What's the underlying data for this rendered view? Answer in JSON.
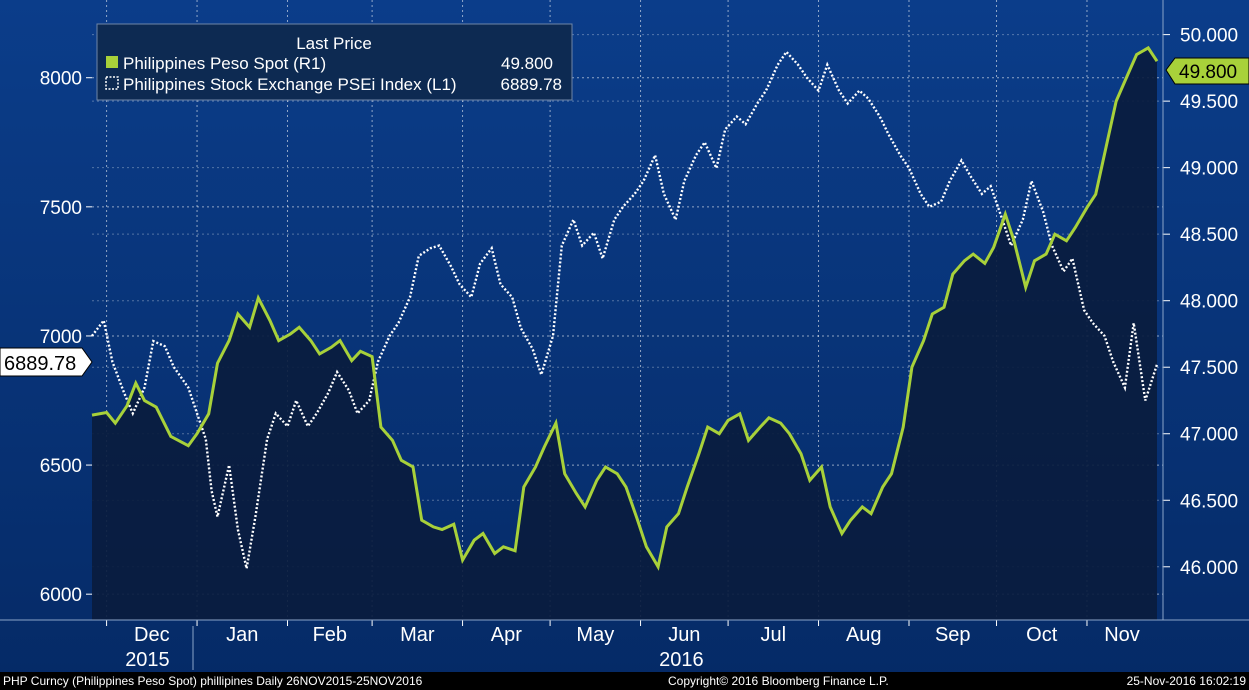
{
  "colors": {
    "background_top": "#0b3d8a",
    "background_bottom": "#052a66",
    "peso_line": "#a8d13a",
    "index_line": "#ffffff",
    "area_fill": "#0a1c3e",
    "grid": "#ffffff"
  },
  "legend": {
    "header": "Last Price",
    "peso_label": "Philippines Peso Spot  (R1)",
    "peso_value": "49.800",
    "index_label": "Philippines Stock Exchange PSEi Index  (L1)",
    "index_value": "6889.78"
  },
  "badges": {
    "left_value": "6889.78",
    "right_value": "49.800"
  },
  "footer": {
    "left": "PHP Curncy (Philippines Peso Spot) phillipines  Daily 26NOV2015-25NOV2016",
    "center": "Copyright© 2016 Bloomberg Finance L.P.",
    "right": "25-Nov-2016 16:02:19"
  },
  "chart_data": {
    "type": "line",
    "x_start_date": "2015-11-26",
    "x_end_date": "2016-11-25",
    "x_months": [
      "Dec",
      "Jan",
      "Feb",
      "Mar",
      "Apr",
      "May",
      "Jun",
      "Jul",
      "Aug",
      "Sep",
      "Oct",
      "Nov"
    ],
    "x_years": [
      "2015",
      "2016"
    ],
    "left_axis": {
      "series": "Philippines Stock Exchange PSEi Index",
      "ticks": [
        "6000",
        "6500",
        "7000",
        "7500",
        "8000"
      ],
      "ylim": [
        5900,
        8270
      ]
    },
    "right_axis": {
      "series": "Philippines Peso Spot",
      "ticks": [
        "46.000",
        "46.500",
        "47.000",
        "47.500",
        "48.000",
        "48.500",
        "49.000",
        "49.500",
        "50.000"
      ],
      "ylim": [
        45.6,
        50.2
      ]
    },
    "grid": true,
    "legend_position": "top-left",
    "series": [
      {
        "name": "Philippines Peso Spot",
        "axis": "right",
        "style": "solid",
        "values": [
          [
            "2015-11-26",
            47.14
          ],
          [
            "2015-12-01",
            47.16
          ],
          [
            "2015-12-04",
            47.08
          ],
          [
            "2015-12-08",
            47.21
          ],
          [
            "2015-12-11",
            47.38
          ],
          [
            "2015-12-14",
            47.25
          ],
          [
            "2015-12-18",
            47.2
          ],
          [
            "2015-12-23",
            46.98
          ],
          [
            "2015-12-29",
            46.91
          ],
          [
            "2016-01-01",
            47.0
          ],
          [
            "2016-01-05",
            47.15
          ],
          [
            "2016-01-08",
            47.53
          ],
          [
            "2016-01-12",
            47.7
          ],
          [
            "2016-01-15",
            47.9
          ],
          [
            "2016-01-19",
            47.8
          ],
          [
            "2016-01-22",
            48.02
          ],
          [
            "2016-01-26",
            47.85
          ],
          [
            "2016-01-29",
            47.7
          ],
          [
            "2016-02-02",
            47.75
          ],
          [
            "2016-02-05",
            47.8
          ],
          [
            "2016-02-09",
            47.7
          ],
          [
            "2016-02-12",
            47.6
          ],
          [
            "2016-02-16",
            47.65
          ],
          [
            "2016-02-19",
            47.7
          ],
          [
            "2016-02-23",
            47.55
          ],
          [
            "2016-02-26",
            47.62
          ],
          [
            "2016-03-01",
            47.58
          ],
          [
            "2016-03-04",
            47.05
          ],
          [
            "2016-03-08",
            46.95
          ],
          [
            "2016-03-11",
            46.8
          ],
          [
            "2016-03-15",
            46.75
          ],
          [
            "2016-03-18",
            46.35
          ],
          [
            "2016-03-22",
            46.3
          ],
          [
            "2016-03-25",
            46.28
          ],
          [
            "2016-03-29",
            46.32
          ],
          [
            "2016-04-01",
            46.05
          ],
          [
            "2016-04-05",
            46.2
          ],
          [
            "2016-04-08",
            46.25
          ],
          [
            "2016-04-12",
            46.1
          ],
          [
            "2016-04-15",
            46.15
          ],
          [
            "2016-04-19",
            46.12
          ],
          [
            "2016-04-22",
            46.6
          ],
          [
            "2016-04-26",
            46.75
          ],
          [
            "2016-04-29",
            46.9
          ],
          [
            "2016-05-03",
            47.08
          ],
          [
            "2016-05-06",
            46.7
          ],
          [
            "2016-05-10",
            46.55
          ],
          [
            "2016-05-13",
            46.45
          ],
          [
            "2016-05-17",
            46.65
          ],
          [
            "2016-05-20",
            46.75
          ],
          [
            "2016-05-24",
            46.7
          ],
          [
            "2016-05-27",
            46.6
          ],
          [
            "2016-05-31",
            46.35
          ],
          [
            "2016-06-03",
            46.15
          ],
          [
            "2016-06-07",
            46.0
          ],
          [
            "2016-06-10",
            46.3
          ],
          [
            "2016-06-14",
            46.4
          ],
          [
            "2016-06-17",
            46.6
          ],
          [
            "2016-06-21",
            46.85
          ],
          [
            "2016-06-24",
            47.05
          ],
          [
            "2016-06-28",
            47.0
          ],
          [
            "2016-07-01",
            47.1
          ],
          [
            "2016-07-05",
            47.15
          ],
          [
            "2016-07-08",
            46.95
          ],
          [
            "2016-07-12",
            47.05
          ],
          [
            "2016-07-15",
            47.12
          ],
          [
            "2016-07-19",
            47.08
          ],
          [
            "2016-07-22",
            47.0
          ],
          [
            "2016-07-26",
            46.85
          ],
          [
            "2016-07-29",
            46.65
          ],
          [
            "2016-08-02",
            46.75
          ],
          [
            "2016-08-05",
            46.45
          ],
          [
            "2016-08-09",
            46.25
          ],
          [
            "2016-08-12",
            46.35
          ],
          [
            "2016-08-16",
            46.45
          ],
          [
            "2016-08-19",
            46.4
          ],
          [
            "2016-08-23",
            46.6
          ],
          [
            "2016-08-26",
            46.7
          ],
          [
            "2016-08-30",
            47.05
          ],
          [
            "2016-09-02",
            47.5
          ],
          [
            "2016-09-06",
            47.7
          ],
          [
            "2016-09-09",
            47.9
          ],
          [
            "2016-09-13",
            47.95
          ],
          [
            "2016-09-16",
            48.2
          ],
          [
            "2016-09-20",
            48.3
          ],
          [
            "2016-09-23",
            48.35
          ],
          [
            "2016-09-27",
            48.28
          ],
          [
            "2016-09-30",
            48.4
          ],
          [
            "2016-10-04",
            48.65
          ],
          [
            "2016-10-07",
            48.45
          ],
          [
            "2016-10-11",
            48.1
          ],
          [
            "2016-10-14",
            48.3
          ],
          [
            "2016-10-18",
            48.35
          ],
          [
            "2016-10-21",
            48.5
          ],
          [
            "2016-10-25",
            48.45
          ],
          [
            "2016-10-28",
            48.55
          ],
          [
            "2016-11-01",
            48.7
          ],
          [
            "2016-11-04",
            48.8
          ],
          [
            "2016-11-08",
            49.2
          ],
          [
            "2016-11-11",
            49.5
          ],
          [
            "2016-11-15",
            49.7
          ],
          [
            "2016-11-18",
            49.85
          ],
          [
            "2016-11-22",
            49.9
          ],
          [
            "2016-11-25",
            49.8
          ]
        ]
      },
      {
        "name": "Philippines Stock Exchange PSEi Index",
        "axis": "left",
        "style": "dotted",
        "values": [
          [
            "2015-11-26",
            7000
          ],
          [
            "2015-11-30",
            7060
          ],
          [
            "2015-12-03",
            6900
          ],
          [
            "2015-12-07",
            6780
          ],
          [
            "2015-12-10",
            6700
          ],
          [
            "2015-12-14",
            6800
          ],
          [
            "2015-12-17",
            6980
          ],
          [
            "2015-12-21",
            6960
          ],
          [
            "2015-12-24",
            6880
          ],
          [
            "2015-12-29",
            6800
          ],
          [
            "2016-01-04",
            6600
          ],
          [
            "2016-01-06",
            6400
          ],
          [
            "2016-01-08",
            6300
          ],
          [
            "2016-01-12",
            6500
          ],
          [
            "2016-01-15",
            6250
          ],
          [
            "2016-01-18",
            6100
          ],
          [
            "2016-01-21",
            6300
          ],
          [
            "2016-01-25",
            6600
          ],
          [
            "2016-01-28",
            6700
          ],
          [
            "2016-02-01",
            6650
          ],
          [
            "2016-02-04",
            6750
          ],
          [
            "2016-02-08",
            6650
          ],
          [
            "2016-02-11",
            6700
          ],
          [
            "2016-02-15",
            6780
          ],
          [
            "2016-02-18",
            6860
          ],
          [
            "2016-02-22",
            6790
          ],
          [
            "2016-02-25",
            6700
          ],
          [
            "2016-02-29",
            6750
          ],
          [
            "2016-03-03",
            6900
          ],
          [
            "2016-03-07",
            7000
          ],
          [
            "2016-03-10",
            7050
          ],
          [
            "2016-03-14",
            7150
          ],
          [
            "2016-03-17",
            7310
          ],
          [
            "2016-03-21",
            7340
          ],
          [
            "2016-03-24",
            7350
          ],
          [
            "2016-03-28",
            7270
          ],
          [
            "2016-03-31",
            7200
          ],
          [
            "2016-04-04",
            7150
          ],
          [
            "2016-04-07",
            7280
          ],
          [
            "2016-04-11",
            7340
          ],
          [
            "2016-04-14",
            7200
          ],
          [
            "2016-04-18",
            7150
          ],
          [
            "2016-04-21",
            7030
          ],
          [
            "2016-04-25",
            6950
          ],
          [
            "2016-04-28",
            6850
          ],
          [
            "2016-05-02",
            7000
          ],
          [
            "2016-05-05",
            7350
          ],
          [
            "2016-05-09",
            7450
          ],
          [
            "2016-05-12",
            7350
          ],
          [
            "2016-05-16",
            7400
          ],
          [
            "2016-05-19",
            7300
          ],
          [
            "2016-05-23",
            7450
          ],
          [
            "2016-05-26",
            7500
          ],
          [
            "2016-05-30",
            7550
          ],
          [
            "2016-06-02",
            7600
          ],
          [
            "2016-06-06",
            7700
          ],
          [
            "2016-06-09",
            7550
          ],
          [
            "2016-06-13",
            7450
          ],
          [
            "2016-06-16",
            7600
          ],
          [
            "2016-06-20",
            7700
          ],
          [
            "2016-06-23",
            7750
          ],
          [
            "2016-06-27",
            7650
          ],
          [
            "2016-06-30",
            7800
          ],
          [
            "2016-07-04",
            7850
          ],
          [
            "2016-07-07",
            7820
          ],
          [
            "2016-07-11",
            7900
          ],
          [
            "2016-07-14",
            7950
          ],
          [
            "2016-07-18",
            8050
          ],
          [
            "2016-07-21",
            8100
          ],
          [
            "2016-07-25",
            8050
          ],
          [
            "2016-07-28",
            8000
          ],
          [
            "2016-08-01",
            7950
          ],
          [
            "2016-08-04",
            8050
          ],
          [
            "2016-08-08",
            7950
          ],
          [
            "2016-08-11",
            7900
          ],
          [
            "2016-08-15",
            7950
          ],
          [
            "2016-08-18",
            7920
          ],
          [
            "2016-08-22",
            7850
          ],
          [
            "2016-08-25",
            7780
          ],
          [
            "2016-08-29",
            7700
          ],
          [
            "2016-09-01",
            7650
          ],
          [
            "2016-09-05",
            7550
          ],
          [
            "2016-09-08",
            7500
          ],
          [
            "2016-09-12",
            7520
          ],
          [
            "2016-09-15",
            7600
          ],
          [
            "2016-09-19",
            7680
          ],
          [
            "2016-09-22",
            7620
          ],
          [
            "2016-09-26",
            7550
          ],
          [
            "2016-09-29",
            7580
          ],
          [
            "2016-10-03",
            7450
          ],
          [
            "2016-10-06",
            7350
          ],
          [
            "2016-10-10",
            7450
          ],
          [
            "2016-10-13",
            7600
          ],
          [
            "2016-10-17",
            7480
          ],
          [
            "2016-10-20",
            7350
          ],
          [
            "2016-10-24",
            7250
          ],
          [
            "2016-10-27",
            7300
          ],
          [
            "2016-10-31",
            7100
          ],
          [
            "2016-11-03",
            7050
          ],
          [
            "2016-11-07",
            7000
          ],
          [
            "2016-11-10",
            6900
          ],
          [
            "2016-11-14",
            6800
          ],
          [
            "2016-11-17",
            7050
          ],
          [
            "2016-11-21",
            6750
          ],
          [
            "2016-11-25",
            6889.78
          ]
        ]
      }
    ]
  }
}
